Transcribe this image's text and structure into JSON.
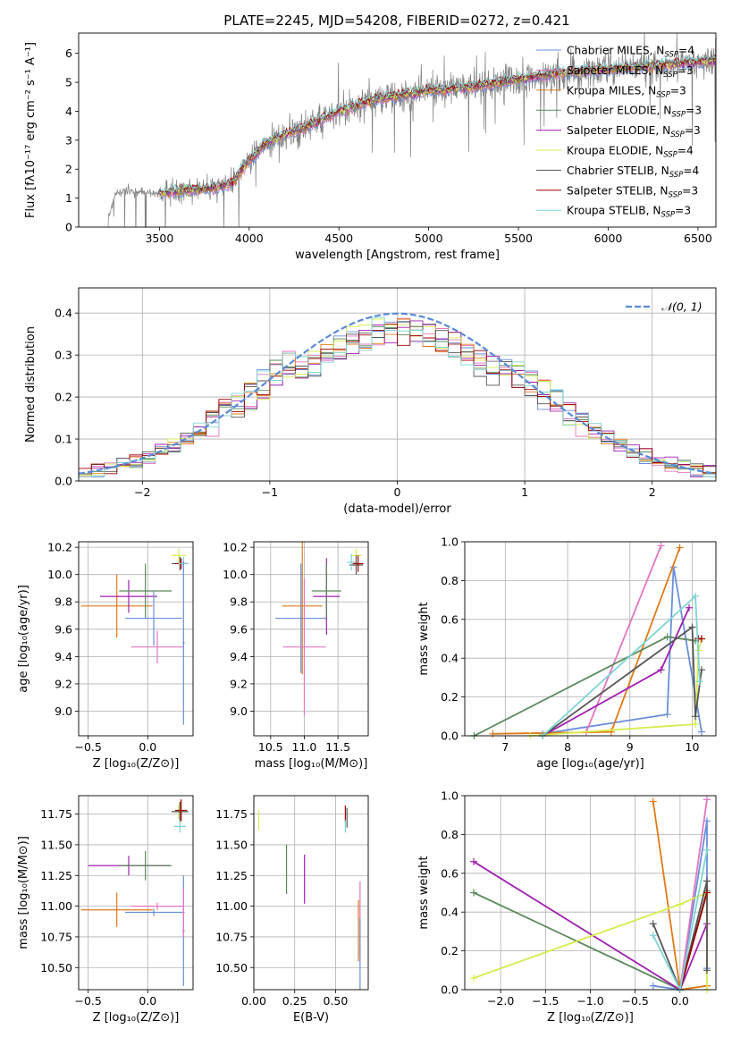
{
  "colors": {
    "chabrier_miles": "#6a8fd8",
    "salpeter_miles": "#e377c2",
    "kroupa_miles": "#e07b1a",
    "chabrier_elodie": "#5a8a5a",
    "salpeter_elodie": "#a020b0",
    "kroupa_elodie": "#d8ec50",
    "chabrier_stelib": "#555555",
    "salpeter_stelib": "#a00000",
    "kroupa_stelib": "#7fd4d4",
    "data": "#808080",
    "gauss": "#5b8ad8"
  },
  "chart_data": [
    {
      "id": "spectrum",
      "type": "line",
      "title": "PLATE=2245, MJD=54208, FIBERID=0272, z=0.421",
      "xlabel": "wavelength [Angstrom, rest frame]",
      "ylabel": "Flux [fλ10⁻¹⁷ erg cm⁻² s⁻¹ A⁻¹]",
      "xlim": [
        3050,
        6600
      ],
      "ylim": [
        0,
        6.7
      ],
      "xticks": [
        3500,
        4000,
        4500,
        5000,
        5500,
        6000,
        6500
      ],
      "yticks": [
        0,
        1,
        2,
        3,
        4,
        5,
        6
      ],
      "data_trend": {
        "x": [
          3200,
          3250,
          3300,
          3400,
          3500,
          3600,
          3700,
          3800,
          3900,
          4000,
          4100,
          4200,
          4300,
          4400,
          4500,
          4600,
          4700,
          4800,
          4900,
          5000,
          5100,
          5200,
          5300,
          5400,
          5500,
          5600,
          5700,
          5800,
          5900,
          6000,
          6100,
          6200,
          6300,
          6400,
          6500,
          6600
        ],
        "y": [
          0,
          1.1,
          1.25,
          1.2,
          1.15,
          1.25,
          1.3,
          1.35,
          1.5,
          2.3,
          2.9,
          3.2,
          3.4,
          3.7,
          4.0,
          4.2,
          4.4,
          4.5,
          4.6,
          4.7,
          4.75,
          4.8,
          4.9,
          5.0,
          5.1,
          5.2,
          5.3,
          5.35,
          5.4,
          5.45,
          5.5,
          5.55,
          5.6,
          5.65,
          5.7,
          5.75
        ]
      },
      "model_start": 3500,
      "legend": [
        {
          "key": "chabrier_miles",
          "label": "Chabrier MILES, N",
          "n": "4"
        },
        {
          "key": "salpeter_miles",
          "label": "Salpeter MILES, N",
          "n": "3"
        },
        {
          "key": "kroupa_miles",
          "label": "Kroupa MILES, N",
          "n": "3"
        },
        {
          "key": "chabrier_elodie",
          "label": "Chabrier ELODIE, N",
          "n": "3"
        },
        {
          "key": "salpeter_elodie",
          "label": "Salpeter ELODIE, N",
          "n": "3"
        },
        {
          "key": "kroupa_elodie",
          "label": "Kroupa ELODIE, N",
          "n": "4"
        },
        {
          "key": "chabrier_stelib",
          "label": "Chabrier STELIB, N",
          "n": "4"
        },
        {
          "key": "salpeter_stelib",
          "label": "Salpeter STELIB, N",
          "n": "3"
        },
        {
          "key": "kroupa_stelib",
          "label": "Kroupa STELIB, N",
          "n": "3"
        }
      ],
      "legend_sub": "SSP",
      "legend_placement": "right"
    },
    {
      "id": "hist",
      "type": "histogram",
      "xlabel": "(data-model)/error",
      "ylabel": "Normed distribution",
      "xlim": [
        -2.5,
        2.5
      ],
      "ylim": [
        0,
        0.46
      ],
      "xticks": [
        -2,
        -1,
        0,
        1,
        2
      ],
      "yticks": [
        0.0,
        0.1,
        0.2,
        0.3,
        0.4
      ],
      "bins": [
        -2.5,
        2.5,
        50
      ],
      "gauss_label": "𝒩(0, 1)",
      "legend_placement": "top-right",
      "grid": true
    },
    {
      "id": "age_z",
      "type": "errorbar",
      "xlabel": "Z [log₁₀(Z/Z⊙)]",
      "ylabel": "age  [log₁₀(age/yr)]",
      "xlim": [
        -0.58,
        0.38
      ],
      "ylim": [
        8.82,
        10.24
      ],
      "xticks": [
        -0.5,
        0.0
      ],
      "yticks": [
        9.0,
        9.2,
        9.4,
        9.6,
        9.8,
        10.0,
        10.2
      ],
      "points": [
        {
          "key": "kroupa_miles",
          "x": -0.26,
          "xerr": 0.3,
          "y": 9.77,
          "yerr": 0.23
        },
        {
          "key": "salpeter_elodie",
          "x": -0.16,
          "xerr": 0.24,
          "y": 9.84,
          "yerr": 0.12
        },
        {
          "key": "chabrier_elodie",
          "x": -0.02,
          "xerr": 0.22,
          "y": 9.88,
          "yerr": 0.2
        },
        {
          "key": "chabrier_miles",
          "x": 0.05,
          "xerr": 0.24,
          "y": 9.68,
          "yerr": 0.2
        },
        {
          "key": "salpeter_miles",
          "x": 0.08,
          "xerr": 0.22,
          "y": 9.47,
          "yerr": 0.12
        },
        {
          "key": "kroupa_elodie",
          "x": 0.26,
          "xerr": 0.06,
          "y": 10.14,
          "yerr": 0.05
        },
        {
          "key": "chabrier_stelib",
          "x": 0.27,
          "xerr": 0.07,
          "y": 10.08,
          "yerr": 0.05
        },
        {
          "key": "salpeter_stelib",
          "x": 0.28,
          "xerr": 0.05,
          "y": 10.08,
          "yerr": 0.04
        },
        {
          "key": "kroupa_stelib",
          "x": 0.3,
          "xerr": 0.04,
          "y": 10.08,
          "yerr": 0.05
        },
        {
          "key": "chabrier_miles",
          "x": 0.3,
          "xerr": 0.01,
          "y": 9.5,
          "yerr": 0.6
        }
      ],
      "grid": true
    },
    {
      "id": "age_mass",
      "type": "errorbar",
      "xlabel": "mass [log₁₀(M/M⊙)]",
      "ylabel": "",
      "xlim": [
        10.25,
        11.95
      ],
      "ylim": [
        8.82,
        10.24
      ],
      "xticks": [
        10.5,
        11.0,
        11.5
      ],
      "yticks": [
        9.0,
        9.2,
        9.4,
        9.6,
        9.8,
        10.0,
        10.2
      ],
      "points": [
        {
          "key": "chabrier_miles",
          "x": 10.95,
          "xerr": 0.38,
          "y": 9.68,
          "yerr": 0.4
        },
        {
          "key": "kroupa_miles",
          "x": 10.97,
          "xerr": 0.3,
          "y": 9.77,
          "yerr": 0.5
        },
        {
          "key": "salpeter_miles",
          "x": 11.0,
          "xerr": 0.32,
          "y": 9.47,
          "yerr": 0.5
        },
        {
          "key": "salpeter_elodie",
          "x": 11.33,
          "xerr": 0.2,
          "y": 9.84,
          "yerr": 0.28
        },
        {
          "key": "chabrier_elodie",
          "x": 11.33,
          "xerr": 0.22,
          "y": 9.88,
          "yerr": 0.2
        },
        {
          "key": "kroupa_elodie",
          "x": 11.77,
          "xerr": 0.08,
          "y": 10.14,
          "yerr": 0.05
        },
        {
          "key": "chabrier_stelib",
          "x": 11.77,
          "xerr": 0.1,
          "y": 10.07,
          "yerr": 0.07
        },
        {
          "key": "salpeter_stelib",
          "x": 11.8,
          "xerr": 0.08,
          "y": 10.08,
          "yerr": 0.06
        },
        {
          "key": "kroupa_stelib",
          "x": 11.7,
          "xerr": 0.06,
          "y": 10.09,
          "yerr": 0.06
        }
      ],
      "grid": true
    },
    {
      "id": "weight_age",
      "type": "line",
      "xlabel": "age  [log₁₀(age/yr)]",
      "ylabel": "mass weight",
      "xlim": [
        6.35,
        10.38
      ],
      "ylim": [
        0,
        1
      ],
      "xticks": [
        7,
        8,
        9,
        10
      ],
      "yticks": [
        0.0,
        0.2,
        0.4,
        0.6,
        0.8,
        1.0
      ],
      "series": [
        {
          "key": "chabrier_miles",
          "x": [
            7.6,
            9.6,
            9.7,
            10.15
          ],
          "y": [
            0.01,
            0.11,
            0.87,
            0.02
          ]
        },
        {
          "key": "salpeter_miles",
          "x": [
            8.3,
            9.5
          ],
          "y": [
            0.02,
            0.98
          ]
        },
        {
          "key": "kroupa_miles",
          "x": [
            6.8,
            8.7,
            9.8
          ],
          "y": [
            0.01,
            0.02,
            0.97
          ]
        },
        {
          "key": "chabrier_elodie",
          "x": [
            6.5,
            9.6,
            10.05
          ],
          "y": [
            0.0,
            0.51,
            0.49
          ]
        },
        {
          "key": "salpeter_elodie",
          "x": [
            7.6,
            9.5,
            9.95
          ],
          "y": [
            0.0,
            0.34,
            0.66
          ]
        },
        {
          "key": "kroupa_elodie",
          "x": [
            7.4,
            10.05,
            10.1,
            10.15
          ],
          "y": [
            0.0,
            0.06,
            0.44,
            0.5
          ]
        },
        {
          "key": "chabrier_stelib",
          "x": [
            7.6,
            10.0,
            10.05,
            10.15
          ],
          "y": [
            0.0,
            0.56,
            0.1,
            0.34
          ]
        },
        {
          "key": "salpeter_stelib",
          "x": [
            10.1,
            10.15
          ],
          "y": [
            0.5,
            0.5
          ]
        },
        {
          "key": "kroupa_stelib",
          "x": [
            7.6,
            10.05,
            10.12
          ],
          "y": [
            0.0,
            0.72,
            0.28
          ]
        }
      ],
      "grid": true
    },
    {
      "id": "mass_z",
      "type": "errorbar",
      "xlabel": "Z [log₁₀(Z/Z⊙)]",
      "ylabel": "mass [log₁₀(M/M⊙)]",
      "xlim": [
        -0.58,
        0.38
      ],
      "ylim": [
        10.32,
        11.9
      ],
      "xticks": [
        -0.5,
        0.0
      ],
      "yticks": [
        10.5,
        10.75,
        11.0,
        11.25,
        11.5,
        11.75
      ],
      "points": [
        {
          "key": "kroupa_miles",
          "x": -0.26,
          "xerr": 0.3,
          "y": 10.97,
          "yerr": 0.14
        },
        {
          "key": "salpeter_elodie",
          "x": -0.16,
          "xerr": 0.34,
          "y": 11.33,
          "yerr": 0.08
        },
        {
          "key": "chabrier_elodie",
          "x": -0.02,
          "xerr": 0.22,
          "y": 11.33,
          "yerr": 0.12
        },
        {
          "key": "chabrier_miles",
          "x": 0.05,
          "xerr": 0.24,
          "y": 10.95,
          "yerr": 0.03
        },
        {
          "key": "salpeter_miles",
          "x": 0.08,
          "xerr": 0.22,
          "y": 11.0,
          "yerr": 0.03
        },
        {
          "key": "kroupa_elodie",
          "x": 0.26,
          "xerr": 0.06,
          "y": 11.77,
          "yerr": 0.06
        },
        {
          "key": "chabrier_stelib",
          "x": 0.27,
          "xerr": 0.07,
          "y": 11.77,
          "yerr": 0.08
        },
        {
          "key": "salpeter_stelib",
          "x": 0.28,
          "xerr": 0.05,
          "y": 11.78,
          "yerr": 0.09
        },
        {
          "key": "kroupa_stelib",
          "x": 0.27,
          "xerr": 0.05,
          "y": 11.65,
          "yerr": 0.05
        },
        {
          "key": "chabrier_miles",
          "x": 0.3,
          "xerr": 0.01,
          "y": 10.8,
          "yerr": 0.45
        },
        {
          "key": "salpeter_miles",
          "x": 0.3,
          "xerr": 0.01,
          "y": 10.95,
          "yerr": 0.2
        }
      ],
      "grid": true
    },
    {
      "id": "mass_ebv",
      "type": "errorbar",
      "xlabel": "E(B-V)",
      "ylabel": "",
      "xlim": [
        0.0,
        0.7
      ],
      "ylim": [
        10.32,
        11.9
      ],
      "xticks": [
        0.0,
        0.25,
        0.5
      ],
      "yticks": [
        10.5,
        10.75,
        11.0,
        11.25,
        11.5,
        11.75
      ],
      "points": [
        {
          "key": "kroupa_elodie",
          "x": 0.03,
          "xerr": 0.0,
          "y": 11.7,
          "yerr": 0.08
        },
        {
          "key": "chabrier_elodie",
          "x": 0.2,
          "xerr": 0.0,
          "y": 11.3,
          "yerr": 0.2
        },
        {
          "key": "salpeter_elodie",
          "x": 0.31,
          "xerr": 0.0,
          "y": 11.22,
          "yerr": 0.2
        },
        {
          "key": "salpeter_stelib",
          "x": 0.56,
          "xerr": 0.0,
          "y": 11.75,
          "yerr": 0.07
        },
        {
          "key": "chabrier_stelib",
          "x": 0.57,
          "xerr": 0.0,
          "y": 11.72,
          "yerr": 0.08
        },
        {
          "key": "kroupa_stelib",
          "x": 0.56,
          "xerr": 0.0,
          "y": 11.65,
          "yerr": 0.05
        },
        {
          "key": "kroupa_miles",
          "x": 0.64,
          "xerr": 0.0,
          "y": 10.8,
          "yerr": 0.25
        },
        {
          "key": "salpeter_miles",
          "x": 0.65,
          "xerr": 0.0,
          "y": 10.9,
          "yerr": 0.3
        },
        {
          "key": "chabrier_miles",
          "x": 0.65,
          "xerr": 0.0,
          "y": 10.6,
          "yerr": 0.3
        }
      ],
      "grid": true
    },
    {
      "id": "weight_z",
      "type": "line",
      "xlabel": "Z [log₁₀(Z/Z⊙)]",
      "ylabel": "mass weight",
      "xlim": [
        -2.4,
        0.4
      ],
      "ylim": [
        0,
        1
      ],
      "xticks": [
        -2.0,
        -1.5,
        -1.0,
        -0.5,
        0.0
      ],
      "yticks": [
        0.0,
        0.2,
        0.4,
        0.6,
        0.8,
        1.0
      ],
      "series": [
        {
          "key": "chabrier_miles",
          "x": [
            -0.3,
            0.0,
            0.3,
            0.3
          ],
          "y": [
            0.02,
            0.0,
            0.87,
            0.11
          ]
        },
        {
          "key": "salpeter_miles",
          "x": [
            0.0,
            0.3
          ],
          "y": [
            0.0,
            0.98
          ]
        },
        {
          "key": "kroupa_miles",
          "x": [
            -0.3,
            0.0,
            0.3
          ],
          "y": [
            0.97,
            0.0,
            0.02
          ]
        },
        {
          "key": "chabrier_elodie",
          "x": [
            -2.3,
            0.0,
            0.3
          ],
          "y": [
            0.5,
            0.0,
            0.51
          ]
        },
        {
          "key": "salpeter_elodie",
          "x": [
            -2.3,
            0.0,
            0.3
          ],
          "y": [
            0.66,
            0.0,
            0.34
          ]
        },
        {
          "key": "kroupa_elodie",
          "x": [
            -2.3,
            0.0,
            0.3,
            0.3
          ],
          "y": [
            0.06,
            0.44,
            0.5,
            0.0
          ]
        },
        {
          "key": "chabrier_stelib",
          "x": [
            -0.3,
            0.0,
            0.3,
            0.3
          ],
          "y": [
            0.34,
            0.0,
            0.56,
            0.1
          ]
        },
        {
          "key": "salpeter_stelib",
          "x": [
            0.0,
            0.3
          ],
          "y": [
            0.0,
            0.5
          ]
        },
        {
          "key": "kroupa_stelib",
          "x": [
            -0.3,
            0.0,
            0.3
          ],
          "y": [
            0.28,
            0.0,
            0.72
          ]
        }
      ],
      "grid": true
    }
  ]
}
